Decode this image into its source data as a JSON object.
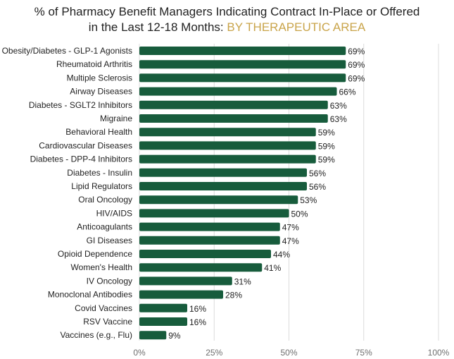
{
  "chart_data": {
    "type": "bar",
    "orientation": "horizontal",
    "title": "% of Pharmacy Benefit Managers Indicating Contract In-Place or Offered in the Last 12-18 Months:",
    "title_line1": "% of Pharmacy Benefit Managers Indicating Contract In-Place or Offered",
    "title_line2": "in the Last 12-18 Months:",
    "title_highlight": "BY THERAPEUTIC AREA",
    "categories": [
      "Obesity/Diabetes - GLP-1 Agonists",
      "Rheumatoid Arthritis",
      "Multiple Sclerosis",
      "Airway Diseases",
      "Diabetes - SGLT2 Inhibitors",
      "Migraine",
      "Behavioral Health",
      "Cardiovascular Diseases",
      "Diabetes - DPP-4 Inhibitors",
      "Diabetes - Insulin",
      "Lipid Regulators",
      "Oral Oncology",
      "HIV/AIDS",
      "Anticoagulants",
      "GI Diseases",
      "Opioid Dependence",
      "Women's Health",
      "IV Oncology",
      "Monoclonal Antibodies",
      "Covid Vaccines",
      "RSV Vaccine",
      "Vaccines (e.g., Flu)"
    ],
    "values": [
      69,
      69,
      69,
      66,
      63,
      63,
      59,
      59,
      59,
      56,
      56,
      53,
      50,
      47,
      47,
      44,
      41,
      31,
      28,
      16,
      16,
      9
    ],
    "value_labels": [
      "69%",
      "69%",
      "69%",
      "66%",
      "63%",
      "63%",
      "59%",
      "59%",
      "59%",
      "56%",
      "56%",
      "53%",
      "50%",
      "47%",
      "47%",
      "44%",
      "41%",
      "31%",
      "28%",
      "16%",
      "16%",
      "9%"
    ],
    "xlim": [
      0,
      100
    ],
    "xticks": [
      0,
      25,
      50,
      75,
      100
    ],
    "xtick_labels": [
      "0%",
      "25%",
      "50%",
      "75%",
      "100%"
    ],
    "grid": true,
    "colors": {
      "bar": "#175c3c",
      "highlight": "#c9a44a",
      "grid": "#dcdcdc"
    }
  }
}
